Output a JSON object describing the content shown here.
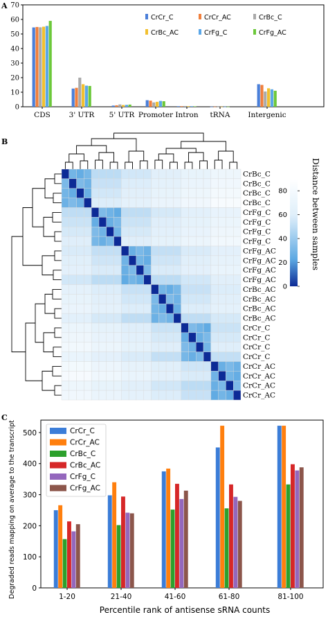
{
  "panel_labels": [
    "A",
    "B",
    "C"
  ],
  "chart_data": [
    {
      "type": "bar",
      "categories": [
        "CDS",
        "3' UTR",
        "5' UTR",
        "Promoter",
        "Intron",
        "tRNA",
        "Intergenic"
      ],
      "ylim": [
        0,
        70
      ],
      "yticks": [
        0,
        10,
        20,
        30,
        40,
        50,
        60,
        70
      ],
      "legend_position": "top-right",
      "series": [
        {
          "name": "CrCr_C",
          "color": "#4a7fd9",
          "values": [
            54.5,
            12.5,
            0.8,
            4.5,
            0.4,
            0.1,
            15.5
          ]
        },
        {
          "name": "CrCr_AC",
          "color": "#f07f3c",
          "values": [
            54.8,
            13.0,
            1.0,
            4.2,
            0.4,
            0.1,
            15.0
          ]
        },
        {
          "name": "CrBc_C",
          "color": "#aaaaaa",
          "values": [
            54.6,
            20.0,
            1.6,
            3.0,
            0.5,
            0.1,
            10.5
          ]
        },
        {
          "name": "CrBc_AC",
          "color": "#f2c02e",
          "values": [
            55.0,
            15.5,
            1.2,
            3.4,
            0.4,
            0.1,
            12.7
          ]
        },
        {
          "name": "CrFg_C",
          "color": "#5aa7e8",
          "values": [
            55.5,
            14.5,
            1.3,
            4.0,
            0.4,
            0.1,
            12.0
          ]
        },
        {
          "name": "CrFg_AC",
          "color": "#6cc83a",
          "values": [
            59.0,
            14.3,
            1.5,
            3.8,
            0.3,
            0.1,
            11.0
          ]
        }
      ]
    },
    {
      "type": "heatmap",
      "row_labels": [
        "CrBc_C",
        "CrBc_C",
        "CrBc_C",
        "CrBc_C",
        "CrFg_C",
        "CrFg_C",
        "CrFg_C",
        "CrFg_C",
        "CrFg_AC",
        "CrFg_AC",
        "CrFg_AC",
        "CrFg_AC",
        "CrBc_AC",
        "CrBc_AC",
        "CrBc_AC",
        "CrBc_AC",
        "CrCr_C",
        "CrCr_C",
        "CrCr_C",
        "CrCr_C",
        "CrCr_AC",
        "CrCr_AC",
        "CrCr_AC",
        "CrCr_AC"
      ],
      "group_sizes": [
        4,
        4,
        4,
        4,
        4,
        4
      ],
      "value_range": [
        0,
        90
      ],
      "approx_within_group_distance": 28,
      "approx_between_group_distance": 62,
      "approx_diagonal_distance": 0,
      "colorbar_label": "Distance between samples",
      "colorbar_ticks": [
        0,
        20,
        40,
        60,
        80
      ]
    },
    {
      "type": "bar",
      "categories": [
        "1-20",
        "21-40",
        "41-60",
        "61-80",
        "81-100"
      ],
      "xlabel": "Percentile rank of antisense sRNA counts",
      "ylabel": "Degraded reads mapping on average to the transcript",
      "ylim": [
        0,
        540
      ],
      "yticks": [
        0,
        100,
        200,
        300,
        400,
        500
      ],
      "legend_position": "top-left",
      "series": [
        {
          "name": "CrCr_C",
          "color": "#3b7dd8",
          "values": [
            250,
            298,
            375,
            452,
            522
          ]
        },
        {
          "name": "CrCr_AC",
          "color": "#ff7f0e",
          "values": [
            266,
            340,
            384,
            522,
            522
          ]
        },
        {
          "name": "CrBc_C",
          "color": "#2ca02c",
          "values": [
            157,
            202,
            252,
            256,
            333
          ]
        },
        {
          "name": "CrBc_AC",
          "color": "#d62728",
          "values": [
            214,
            294,
            335,
            333,
            398
          ]
        },
        {
          "name": "CrFg_C",
          "color": "#9467bd",
          "values": [
            182,
            242,
            286,
            293,
            378
          ]
        },
        {
          "name": "CrFg_AC",
          "color": "#8c564b",
          "values": [
            205,
            240,
            313,
            280,
            388
          ]
        }
      ]
    }
  ]
}
